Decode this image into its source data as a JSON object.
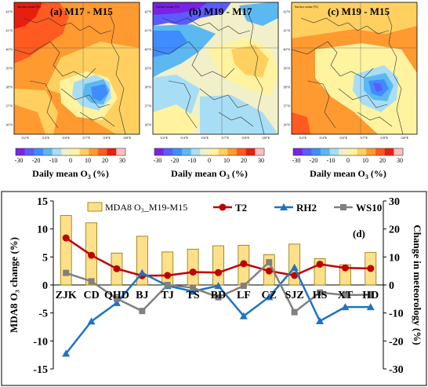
{
  "panels": [
    {
      "label": "(a) M17 - M15",
      "header": "Surface ozone   (%)",
      "lat_ticks": [
        "42°N",
        "41°N",
        "40°N",
        "39°N",
        "38°N",
        "37°N",
        "36°N"
      ],
      "lon_ticks": [
        "112°E",
        "114°E",
        "116°E",
        "117°E",
        "118°E",
        "120°E"
      ],
      "colorbar_ticks": [
        "-30",
        "-20",
        "-10",
        "0",
        "10",
        "20",
        "30"
      ],
      "colorbar_label": "Daily mean O",
      "colorbar_sub": "3",
      "colorbar_unit": " (%)"
    },
    {
      "label": "(b) M19 - M17",
      "header": "Surface ozone   (%)",
      "lat_ticks": [
        "42°N",
        "41°N",
        "40°N",
        "39°N",
        "38°N",
        "37°N",
        "36°N"
      ],
      "lon_ticks": [
        "112°E",
        "114°E",
        "116°E",
        "117°E",
        "118°E",
        "120°E"
      ],
      "colorbar_ticks": [
        "-30",
        "-20",
        "-10",
        "0",
        "10",
        "20",
        "30"
      ],
      "colorbar_label": "Daily mean O",
      "colorbar_sub": "3",
      "colorbar_unit": " (%)"
    },
    {
      "label": "(c) M19 - M15",
      "header": "Surface ozone   (%)",
      "lat_ticks": [
        "42°N",
        "41°N",
        "40°N",
        "39°N",
        "38°N",
        "37°N",
        "36°N"
      ],
      "lon_ticks": [
        "112°E",
        "114°E",
        "116°E",
        "117°E",
        "118°E",
        "120°E"
      ],
      "colorbar_ticks": [
        "-30",
        "-20",
        "-10",
        "0",
        "10",
        "20",
        "30"
      ],
      "colorbar_label": "Daily mean O",
      "colorbar_sub": "3",
      "colorbar_unit": " (%)"
    }
  ],
  "colors": {
    "bar_fill": "#FFE08A",
    "bar_stroke": "#8B7500",
    "t2": "#C00000",
    "rh2": "#1F73C4",
    "ws10": "#808080",
    "colorbar": [
      "#7A22E6",
      "#5B5BFF",
      "#3F8CFF",
      "#5CB8F0",
      "#A8DEF5",
      "#F2F0C8",
      "#FFF3A0",
      "#FFD060",
      "#FF9A30",
      "#FF5A20",
      "#E81E10",
      "#FFC0C0"
    ]
  },
  "chart_data": {
    "type": "bar",
    "panel_label": "(d)",
    "categories": [
      "ZJK",
      "CD",
      "QHD",
      "BJ",
      "TJ",
      "TS",
      "BD",
      "LF",
      "CZ",
      "SJZ",
      "HS",
      "XT",
      "HD"
    ],
    "ylabel_left": "MDA8 O₃ change (%)",
    "ylabel_right": "Change in meteorology (%)",
    "ylim_left": [
      -15,
      15
    ],
    "ylim_right": [
      -30,
      30
    ],
    "yticks_left": [
      "-15",
      "-10",
      "-5",
      "0",
      "5",
      "10",
      "15"
    ],
    "yticks_right": [
      "-30",
      "-20",
      "-10",
      "0",
      "10",
      "20",
      "30"
    ],
    "legend_position": "top",
    "series": [
      {
        "name": "MDA8 O₃_M19-M15",
        "kind": "bar",
        "axis": "left",
        "values": [
          12.4,
          11.1,
          5.7,
          8.7,
          5.9,
          6.4,
          7.0,
          7.1,
          5.4,
          7.3,
          4.7,
          3.6,
          5.8
        ]
      },
      {
        "name": "T2",
        "kind": "line",
        "axis": "right",
        "values": [
          16.8,
          10.6,
          5.8,
          3.3,
          3.4,
          4.6,
          4.4,
          7.6,
          5.0,
          3.4,
          7.4,
          6.1,
          5.9
        ]
      },
      {
        "name": "RH2",
        "kind": "line",
        "axis": "right",
        "values": [
          -24.5,
          -13.0,
          -6.4,
          4.3,
          -0.3,
          -2.3,
          -0.3,
          -11.1,
          -4.3,
          6.2,
          -12.9,
          -7.9,
          -7.9
        ]
      },
      {
        "name": "WS10",
        "kind": "line",
        "axis": "right",
        "values": [
          4.3,
          1.3,
          -4.9,
          -9.3,
          0.0,
          -1.0,
          -4.4,
          -0.3,
          8.1,
          -9.7,
          -2.7,
          -3.6,
          -3.5
        ]
      }
    ]
  }
}
